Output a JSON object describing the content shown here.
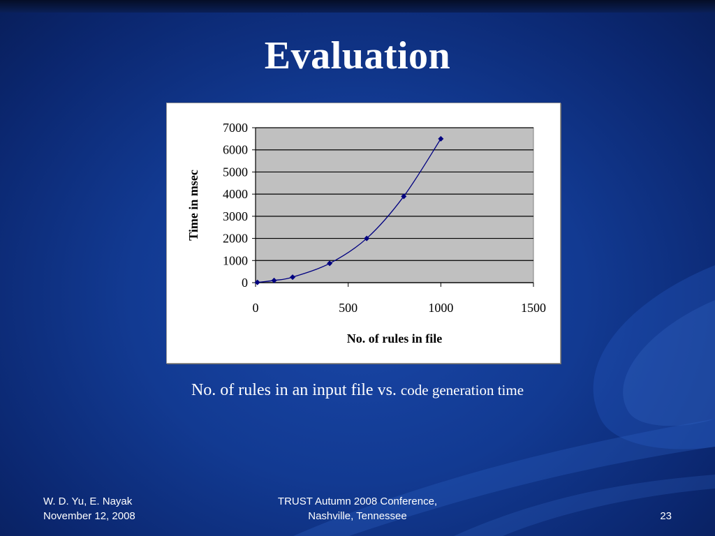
{
  "slide": {
    "title": "Evaluation",
    "caption_main": "No. of rules in an input file vs. ",
    "caption_small": "code generation time",
    "footer": {
      "authors": "W. D. Yu,  E. Nayak",
      "date": "November 12, 2008",
      "conference_line1": "TRUST Autumn 2008 Conference,",
      "conference_line2": "Nashville, Tennessee",
      "page_number": "23"
    }
  },
  "colors": {
    "background": "#123a92",
    "plot_area": "#c0c0c0",
    "series": "#000080",
    "text": "#ffffff"
  },
  "chart_data": {
    "type": "scatter",
    "title": "",
    "xlabel": "No. of rules in file",
    "ylabel": "Time in msec",
    "xlim": [
      0,
      1500
    ],
    "ylim": [
      0,
      7000
    ],
    "xticks": [
      0,
      500,
      1000,
      1500
    ],
    "yticks": [
      0,
      1000,
      2000,
      3000,
      4000,
      5000,
      6000,
      7000
    ],
    "grid": "horizontal",
    "legend": "none",
    "smooth_line": true,
    "series": [
      {
        "x": [
          10,
          100,
          200,
          400,
          600,
          800,
          1000
        ],
        "y": [
          10,
          100,
          250,
          870,
          2000,
          3900,
          6500
        ]
      }
    ]
  }
}
